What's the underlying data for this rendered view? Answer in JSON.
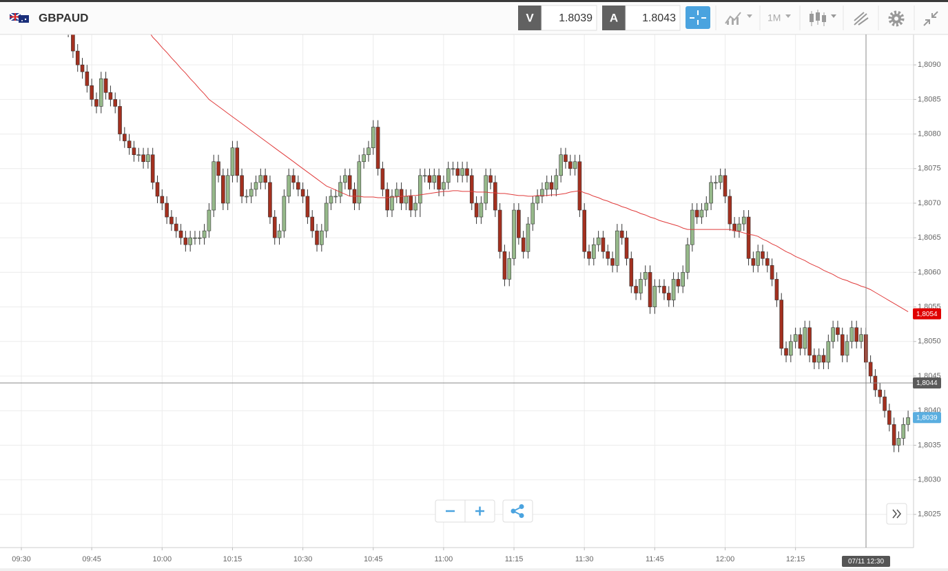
{
  "toolbar": {
    "symbol": "GBPAUD",
    "bid_tag": "V",
    "bid": 1.8039,
    "ask_tag": "A",
    "ask": 1.8043,
    "interval": "1M"
  },
  "chart_data": {
    "type": "candlestick",
    "categories": [
      "09:30",
      null,
      null,
      null,
      null,
      null,
      null,
      null,
      null,
      null,
      null,
      null,
      null,
      null,
      null,
      "09:45",
      null,
      null,
      null,
      null,
      null,
      null,
      null,
      null,
      null,
      null,
      null,
      null,
      null,
      null,
      "10:00",
      null,
      null,
      null,
      null,
      null,
      null,
      null,
      null,
      null,
      null,
      null,
      null,
      null,
      null,
      "10:15",
      null,
      null,
      null,
      null,
      null,
      null,
      null,
      null,
      null,
      null,
      null,
      null,
      null,
      null,
      "10:30",
      null,
      null,
      null,
      null,
      null,
      null,
      null,
      null,
      null,
      null,
      null,
      null,
      null,
      null,
      "10:45",
      null,
      null,
      null,
      null,
      null,
      null,
      null,
      null,
      null,
      null,
      null,
      null,
      null,
      null,
      "11:00",
      null,
      null,
      null,
      null,
      null,
      null,
      null,
      null,
      null,
      null,
      null,
      null,
      null,
      null,
      "11:15",
      null,
      null,
      null,
      null,
      null,
      null,
      null,
      null,
      null,
      null,
      null,
      null,
      null,
      null,
      "11:30",
      null,
      null,
      null,
      null,
      null,
      null,
      null,
      null,
      null,
      null,
      null,
      null,
      null,
      null,
      "11:45",
      null,
      null,
      null,
      null,
      null,
      null,
      null,
      null,
      null,
      null,
      null,
      null,
      null,
      null,
      "12:00",
      null,
      null,
      null,
      null,
      null,
      null,
      null,
      null,
      null,
      null,
      null,
      null,
      null,
      null,
      "12:15",
      null,
      null,
      null,
      null,
      null,
      null,
      null,
      null,
      null,
      null,
      null,
      null,
      null,
      null,
      null,
      null,
      null,
      null,
      null,
      null,
      null,
      null,
      null,
      null
    ],
    "open": [
      null,
      null,
      null,
      null,
      null,
      null,
      null,
      null,
      null,
      null,
      1.8097,
      1.8095,
      1.8092,
      1.809,
      1.8089,
      1.8087,
      1.8085,
      1.8084,
      1.8088,
      1.8086,
      1.8085,
      1.8084,
      1.808,
      1.8079,
      1.8078,
      1.8077,
      1.8077,
      1.8076,
      1.8077,
      1.8073,
      1.8071,
      1.807,
      1.8068,
      1.8067,
      1.8066,
      1.8065,
      1.8064,
      1.8065,
      1.8065,
      1.8065,
      1.8066,
      1.8069,
      1.8076,
      1.8074,
      1.807,
      1.8074,
      1.8078,
      1.8074,
      1.8071,
      1.8071,
      1.8072,
      1.8073,
      1.8074,
      1.8073,
      1.8068,
      1.8065,
      1.8066,
      1.8071,
      1.8074,
      1.8073,
      1.8072,
      1.8071,
      1.8068,
      1.8066,
      1.8064,
      1.8066,
      1.807,
      1.8071,
      1.8071,
      1.8073,
      1.8074,
      1.8072,
      1.807,
      1.8076,
      1.8077,
      1.8078,
      1.8081,
      1.8075,
      1.8072,
      1.8069,
      1.8071,
      1.8072,
      1.807,
      1.8071,
      1.8069,
      1.807,
      1.8074,
      1.8074,
      1.8073,
      1.8074,
      1.8072,
      1.8073,
      1.8075,
      1.8075,
      1.8074,
      1.8075,
      1.8074,
      1.807,
      1.8068,
      1.807,
      1.8074,
      1.8073,
      1.8069,
      1.8063,
      1.8059,
      1.8062,
      1.8069,
      1.8065,
      1.8063,
      1.8067,
      1.807,
      1.8071,
      1.8072,
      1.8073,
      1.8072,
      1.8074,
      1.8077,
      1.8076,
      1.8075,
      1.8076,
      1.8069,
      1.8063,
      1.8062,
      1.8064,
      1.8065,
      1.8063,
      1.8062,
      1.8061,
      1.8066,
      1.8065,
      1.8062,
      1.8058,
      1.8057,
      1.8059,
      1.806,
      1.8055,
      1.8058,
      1.8058,
      1.8057,
      1.8056,
      1.8059,
      1.8058,
      1.806,
      1.8064,
      1.8069,
      1.8068,
      1.8069,
      1.807,
      1.8073,
      1.8073,
      1.8074,
      1.8071,
      1.8067,
      1.8066,
      1.8067,
      1.8068,
      1.8062,
      1.8061,
      1.8063,
      1.8062,
      1.8061,
      1.8059,
      1.8056,
      1.8049,
      1.8048,
      1.805,
      1.8051,
      1.8049,
      1.8052,
      1.8048,
      1.8047,
      1.8048,
      1.8047,
      1.805,
      1.8052,
      1.8051,
      1.8048,
      1.805,
      1.8052,
      1.805,
      1.8051,
      1.8047,
      1.8045,
      1.8043,
      1.8042,
      1.804,
      1.8038,
      1.8035,
      1.8036,
      1.8038
    ],
    "high": [
      null,
      null,
      null,
      null,
      null,
      null,
      null,
      null,
      null,
      null,
      1.8098,
      1.8096,
      1.8093,
      1.8091,
      1.809,
      1.8088,
      1.8086,
      1.8089,
      1.8089,
      1.8087,
      1.8086,
      1.8085,
      1.8081,
      1.808,
      1.8079,
      1.8078,
      1.8078,
      1.8078,
      1.8078,
      1.8074,
      1.8072,
      1.8071,
      1.8069,
      1.8068,
      1.8067,
      1.8066,
      1.8066,
      1.8066,
      1.8066,
      1.8067,
      1.807,
      1.8077,
      1.8077,
      1.8075,
      1.8075,
      1.8079,
      1.8079,
      1.8075,
      1.8072,
      1.8073,
      1.8074,
      1.8075,
      1.8075,
      1.8074,
      1.8069,
      1.8067,
      1.8072,
      1.8075,
      1.8075,
      1.8074,
      1.8073,
      1.8072,
      1.8069,
      1.8067,
      1.8067,
      1.8071,
      1.8072,
      1.8072,
      1.8074,
      1.8075,
      1.8075,
      1.8073,
      1.8077,
      1.8078,
      1.8079,
      1.8082,
      1.8082,
      1.8076,
      1.8073,
      1.8072,
      1.8073,
      1.8073,
      1.8072,
      1.8072,
      1.8071,
      1.8075,
      1.8075,
      1.8075,
      1.8075,
      1.8075,
      1.8074,
      1.8076,
      1.8076,
      1.8076,
      1.8076,
      1.8076,
      1.8075,
      1.8071,
      1.8071,
      1.8075,
      1.8075,
      1.8074,
      1.807,
      1.8064,
      1.8063,
      1.807,
      1.807,
      1.8066,
      1.8068,
      1.8071,
      1.8072,
      1.8073,
      1.8074,
      1.8074,
      1.8075,
      1.8078,
      1.8078,
      1.8077,
      1.8077,
      1.8077,
      1.807,
      1.8064,
      1.8065,
      1.8066,
      1.8066,
      1.8064,
      1.8063,
      1.8067,
      1.8067,
      1.8066,
      1.8063,
      1.8059,
      1.806,
      1.8061,
      1.8061,
      1.8059,
      1.8059,
      1.8059,
      1.8058,
      1.806,
      1.806,
      1.8061,
      1.8065,
      1.807,
      1.807,
      1.807,
      1.8071,
      1.8074,
      1.8074,
      1.8075,
      1.8075,
      1.8072,
      1.8068,
      1.8068,
      1.8069,
      1.8069,
      1.8063,
      1.8064,
      1.8064,
      1.8063,
      1.8062,
      1.806,
      1.8057,
      1.805,
      1.8051,
      1.8052,
      1.8052,
      1.8053,
      1.8053,
      1.8049,
      1.8049,
      1.8049,
      1.8051,
      1.8053,
      1.8053,
      1.8052,
      1.8051,
      1.8053,
      1.8053,
      1.8052,
      1.8052,
      1.8048,
      1.8046,
      1.8044,
      1.8043,
      1.8041,
      1.8039,
      1.8037,
      1.8039,
      1.804
    ],
    "low": [
      null,
      null,
      null,
      null,
      null,
      null,
      null,
      null,
      null,
      null,
      1.8094,
      1.8091,
      1.8089,
      1.8088,
      1.8086,
      1.8084,
      1.8083,
      1.8083,
      1.8085,
      1.8084,
      1.8083,
      1.8079,
      1.8078,
      1.8077,
      1.8076,
      1.8076,
      1.8075,
      1.8075,
      1.8072,
      1.807,
      1.8069,
      1.8067,
      1.8066,
      1.8065,
      1.8064,
      1.8063,
      1.8063,
      1.8064,
      1.8064,
      1.8064,
      1.8065,
      1.8068,
      1.8073,
      1.8069,
      1.8069,
      1.8073,
      1.8073,
      1.807,
      1.807,
      1.807,
      1.8071,
      1.8072,
      1.8072,
      1.8067,
      1.8064,
      1.8064,
      1.8065,
      1.807,
      1.8072,
      1.8071,
      1.807,
      1.8067,
      1.8065,
      1.8063,
      1.8063,
      1.8065,
      1.8069,
      1.807,
      1.807,
      1.8072,
      1.8071,
      1.8069,
      1.8069,
      1.8075,
      1.8076,
      1.8077,
      1.8074,
      1.8071,
      1.8068,
      1.8068,
      1.807,
      1.8069,
      1.8069,
      1.8068,
      1.8068,
      1.8068,
      1.8073,
      1.8072,
      1.8072,
      1.8071,
      1.8071,
      1.8072,
      1.8074,
      1.8073,
      1.8073,
      1.8073,
      1.8069,
      1.8067,
      1.8067,
      1.8069,
      1.8072,
      1.8068,
      1.8062,
      1.8058,
      1.8058,
      1.8061,
      1.8064,
      1.8062,
      1.8062,
      1.8066,
      1.8069,
      1.807,
      1.8071,
      1.8071,
      1.8071,
      1.8073,
      1.8075,
      1.8074,
      1.8074,
      1.8068,
      1.8062,
      1.8061,
      1.8061,
      1.8063,
      1.8062,
      1.8061,
      1.806,
      1.806,
      1.8064,
      1.8061,
      1.8057,
      1.8056,
      1.8056,
      1.8058,
      1.8054,
      1.8054,
      1.8057,
      1.8056,
      1.8055,
      1.8055,
      1.8057,
      1.8057,
      1.8059,
      1.8063,
      1.8067,
      1.8067,
      1.8068,
      1.8069,
      1.8072,
      1.8072,
      1.807,
      1.8066,
      1.8065,
      1.8065,
      1.8066,
      1.8061,
      1.806,
      1.806,
      1.8061,
      1.806,
      1.8058,
      1.8055,
      1.8048,
      1.8047,
      1.8047,
      1.8049,
      1.8048,
      1.8048,
      1.8047,
      1.8046,
      1.8046,
      1.8046,
      1.8046,
      1.8049,
      1.805,
      1.8047,
      1.8047,
      1.8049,
      1.8049,
      1.8049,
      1.8046,
      1.8044,
      1.8042,
      1.8041,
      1.8039,
      1.8037,
      1.8034,
      1.8034,
      1.8035,
      1.8037
    ],
    "close": [
      null,
      null,
      null,
      null,
      null,
      null,
      null,
      null,
      null,
      null,
      1.8095,
      1.8092,
      1.809,
      1.8089,
      1.8087,
      1.8085,
      1.8084,
      1.8088,
      1.8086,
      1.8085,
      1.8084,
      1.808,
      1.8079,
      1.8078,
      1.8077,
      1.8077,
      1.8076,
      1.8077,
      1.8073,
      1.8071,
      1.807,
      1.8068,
      1.8067,
      1.8066,
      1.8065,
      1.8064,
      1.8065,
      1.8065,
      1.8065,
      1.8066,
      1.8069,
      1.8076,
      1.8074,
      1.807,
      1.8074,
      1.8078,
      1.8074,
      1.8071,
      1.8071,
      1.8072,
      1.8073,
      1.8074,
      1.8073,
      1.8068,
      1.8065,
      1.8066,
      1.8071,
      1.8074,
      1.8073,
      1.8072,
      1.8071,
      1.8068,
      1.8066,
      1.8064,
      1.8066,
      1.807,
      1.8071,
      1.8071,
      1.8073,
      1.8074,
      1.8072,
      1.807,
      1.8076,
      1.8077,
      1.8078,
      1.8081,
      1.8075,
      1.8072,
      1.8069,
      1.8071,
      1.8072,
      1.807,
      1.8071,
      1.8069,
      1.807,
      1.8074,
      1.8074,
      1.8073,
      1.8074,
      1.8072,
      1.8073,
      1.8075,
      1.8075,
      1.8074,
      1.8075,
      1.8074,
      1.807,
      1.8068,
      1.807,
      1.8074,
      1.8073,
      1.8069,
      1.8063,
      1.8059,
      1.8062,
      1.8069,
      1.8065,
      1.8063,
      1.8067,
      1.807,
      1.8071,
      1.8072,
      1.8073,
      1.8072,
      1.8074,
      1.8077,
      1.8076,
      1.8075,
      1.8076,
      1.8069,
      1.8063,
      1.8062,
      1.8064,
      1.8065,
      1.8063,
      1.8062,
      1.8061,
      1.8066,
      1.8065,
      1.8062,
      1.8058,
      1.8057,
      1.8059,
      1.806,
      1.8055,
      1.8058,
      1.8058,
      1.8057,
      1.8056,
      1.8059,
      1.8058,
      1.806,
      1.8064,
      1.8069,
      1.8068,
      1.8069,
      1.807,
      1.8073,
      1.8073,
      1.8074,
      1.8071,
      1.8067,
      1.8066,
      1.8067,
      1.8068,
      1.8062,
      1.8061,
      1.8063,
      1.8062,
      1.8061,
      1.8059,
      1.8056,
      1.8049,
      1.8048,
      1.805,
      1.8051,
      1.8049,
      1.8052,
      1.8048,
      1.8047,
      1.8048,
      1.8047,
      1.805,
      1.8052,
      1.8051,
      1.8048,
      1.805,
      1.8052,
      1.805,
      1.8051,
      1.8047,
      1.8045,
      1.8043,
      1.8042,
      1.804,
      1.8038,
      1.8035,
      1.8036,
      1.8038,
      1.8039
    ],
    "up_color": "#96b98a",
    "down_color": "#a3301f",
    "ma": {
      "color": "#e03a3a",
      "values": [
        null,
        null,
        null,
        null,
        null,
        null,
        null,
        null,
        null,
        null,
        null,
        null,
        null,
        null,
        null,
        null,
        null,
        null,
        null,
        null,
        null,
        null,
        null,
        null,
        null,
        null,
        1.8096,
        1.8095,
        1.8094,
        1.80933,
        1.80925,
        1.80918,
        1.8091,
        1.80903,
        1.80895,
        1.80888,
        1.8088,
        1.80873,
        1.80865,
        1.80858,
        1.8085,
        1.80845,
        1.8084,
        1.80835,
        1.8083,
        1.80825,
        1.8082,
        1.80815,
        1.8081,
        1.80805,
        1.808,
        1.80795,
        1.8079,
        1.80785,
        1.8078,
        1.80775,
        1.8077,
        1.80765,
        1.8076,
        1.80755,
        1.8075,
        1.80745,
        1.8074,
        1.80735,
        1.8073,
        1.80725,
        1.80722,
        1.80719,
        1.80716,
        1.80713,
        1.8071,
        1.8071,
        1.8071,
        1.80709,
        1.80709,
        1.80709,
        1.80708,
        1.80708,
        1.80708,
        1.80709,
        1.80709,
        1.8071,
        1.8071,
        1.80711,
        1.80711,
        1.80712,
        1.80713,
        1.80714,
        1.80715,
        1.80716,
        1.80717,
        1.80717,
        1.80718,
        1.80718,
        1.80717,
        1.80717,
        1.80717,
        1.80716,
        1.80716,
        1.80716,
        1.80715,
        1.80715,
        1.80714,
        1.80714,
        1.80713,
        1.80712,
        1.80711,
        1.80711,
        1.8071,
        1.8071,
        1.80711,
        1.80711,
        1.80711,
        1.80712,
        1.80712,
        1.80713,
        1.80714,
        1.80716,
        1.80717,
        1.80718,
        1.80715,
        1.80713,
        1.8071,
        1.80708,
        1.80705,
        1.80703,
        1.807,
        1.80698,
        1.80695,
        1.80693,
        1.8069,
        1.80688,
        1.80685,
        1.80683,
        1.8068,
        1.80678,
        1.80675,
        1.80673,
        1.80671,
        1.80669,
        1.80667,
        1.80664,
        1.80662,
        1.80662,
        1.80662,
        1.80662,
        1.80662,
        1.80662,
        1.80662,
        1.80662,
        1.80662,
        1.80662,
        1.8066,
        1.80659,
        1.80657,
        1.80655,
        1.80654,
        1.80652,
        1.80648,
        1.80645,
        1.80641,
        1.80638,
        1.80634,
        1.8063,
        1.80627,
        1.80623,
        1.8062,
        1.80617,
        1.80613,
        1.8061,
        1.80607,
        1.80603,
        1.806,
        1.80597,
        1.80593,
        1.8059,
        1.80588,
        1.80585,
        1.80583,
        1.8058,
        1.80578,
        1.80575,
        1.80571,
        1.80567,
        1.80563,
        1.80559,
        1.80555,
        1.80551,
        1.80547,
        1.80543
      ]
    },
    "ylim": [
      1.80202,
      1.80944
    ],
    "yticks": [
      {
        "value": 1.8025,
        "label": "1,8025"
      },
      {
        "value": 1.803,
        "label": "1,8030"
      },
      {
        "value": 1.8035,
        "label": "1,8035"
      },
      {
        "value": 1.804,
        "label": "1,8040"
      },
      {
        "value": 1.8045,
        "label": "1,8045"
      },
      {
        "value": 1.805,
        "label": "1,8050"
      },
      {
        "value": 1.8055,
        "label": "1,8055"
      },
      {
        "value": 1.806,
        "label": "1,8060"
      },
      {
        "value": 1.8065,
        "label": "1,8065"
      },
      {
        "value": 1.807,
        "label": "1,8070"
      },
      {
        "value": 1.8075,
        "label": "1,8075"
      },
      {
        "value": 1.808,
        "label": "1,8080"
      },
      {
        "value": 1.8085,
        "label": "1,8085"
      },
      {
        "value": 1.809,
        "label": "1,8090"
      }
    ],
    "grid": true,
    "price_labels": [
      {
        "value": 1.8054,
        "label": "1,8054",
        "color": "#e00000"
      },
      {
        "value": 1.8044,
        "label": "1,8044",
        "color": "#5a5a5a"
      },
      {
        "value": 1.8039,
        "label": "1,8039",
        "color": "#5aaee0"
      }
    ],
    "crosshair_time": "07/11 12:30"
  }
}
